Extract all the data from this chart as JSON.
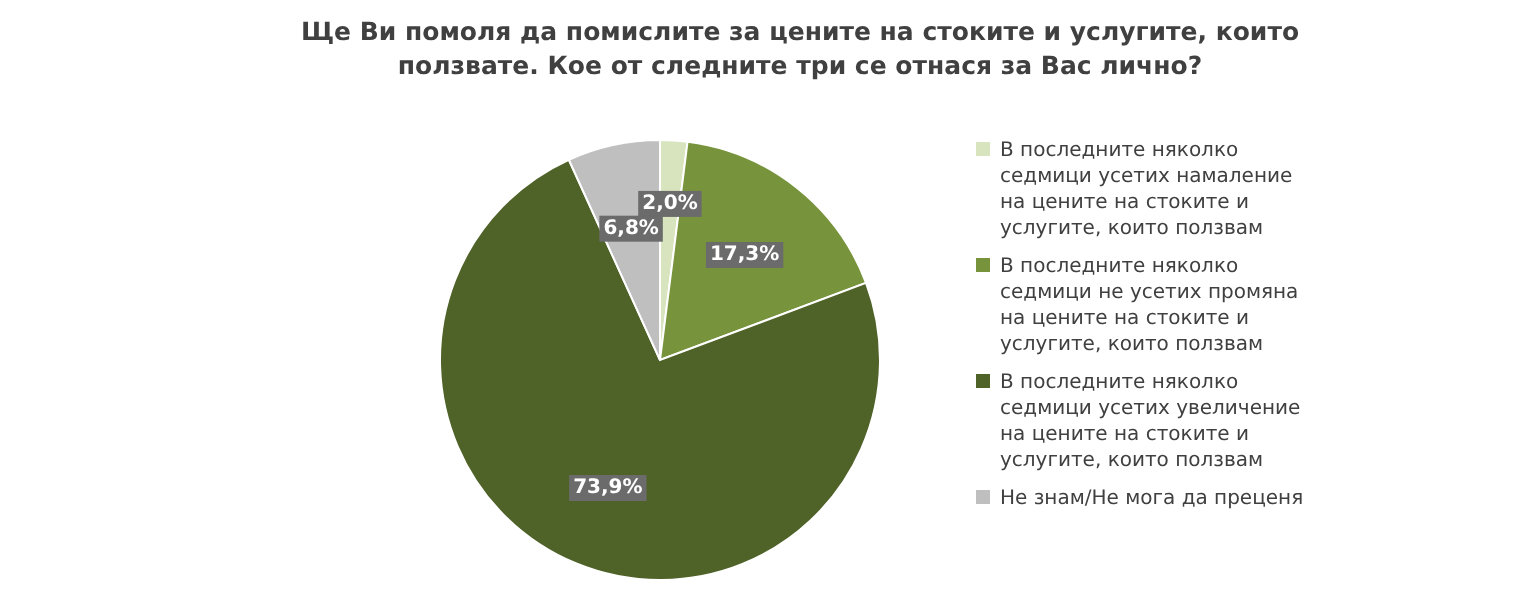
{
  "chart_data": {
    "type": "pie",
    "title": "Ще Ви помоля да помислите за цените на стоките и услугите, които ползвате. Кое от следните три се отнася за Вас лично?",
    "categories": [
      "В последните няколко седмици усетих намаление на цените на стоките и услугите, които ползвам",
      "В последните няколко седмици не усетих промяна на цените на стоките и услугите, които ползвам",
      "В последните няколко седмици усетих увеличение на цените на стоките и услугите, които ползвам",
      "Не знам/Не мога да преценя"
    ],
    "values": [
      2.0,
      17.3,
      73.9,
      6.8
    ],
    "value_labels": [
      "2,0%",
      "17,3%",
      "73,9%",
      "6,8%"
    ],
    "colors": [
      "#d7e4bd",
      "#77933c",
      "#4f6228",
      "#bfbfbf"
    ],
    "legend": "right"
  }
}
